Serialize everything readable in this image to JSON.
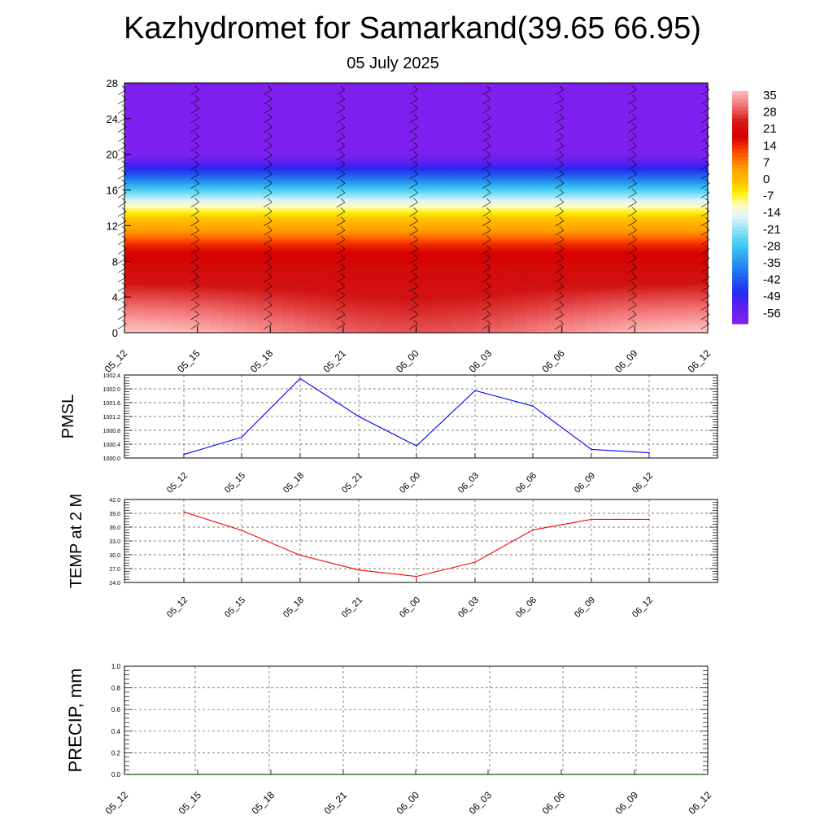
{
  "title": "Kazhydromet for Samarkand(39.65 66.95)",
  "subtitle": "05 July 2025",
  "chart_data": [
    {
      "type": "heatmap",
      "name": "temperature-wind-cross-section",
      "x_ticks": [
        "05_12",
        "05_15",
        "05_18",
        "05_21",
        "06_00",
        "06_03",
        "06_06",
        "06_09",
        "06_12"
      ],
      "y_ticks": [
        "0",
        "4",
        "8",
        "12",
        "16",
        "20",
        "24",
        "28"
      ],
      "ylim": [
        0,
        28
      ],
      "colorbar_labels": [
        "35",
        "28",
        "21",
        "14",
        "7",
        "0",
        "-7",
        "-14",
        "-21",
        "-28",
        "-35",
        "-42",
        "-49",
        "-56"
      ],
      "colorbar_range": [
        -63,
        42
      ],
      "temperature_profile": {
        "levels": [
          0,
          1,
          2,
          3,
          4,
          5,
          6,
          7,
          8,
          9,
          10,
          11,
          12,
          13,
          14,
          15,
          16,
          17,
          18,
          19,
          20,
          21,
          22,
          24,
          26,
          28
        ],
        "values": [
          38,
          36,
          34,
          32,
          30,
          28,
          26,
          25,
          23,
          21,
          17,
          10,
          5,
          0,
          -8,
          -16,
          -26,
          -36,
          -45,
          -54,
          -62,
          -63,
          -63,
          -63,
          -63,
          -63
        ]
      },
      "colors": {
        "warm": "#ffb0b0",
        "red": "#d80000",
        "orange": "#ffa500",
        "yellow": "#fff000",
        "cyan": "#3fc8f0",
        "blue": "#2020f0",
        "violet": "#8020f0"
      }
    },
    {
      "type": "line",
      "name": "pmsl",
      "ylabel": "PMSL",
      "categories": [
        "05_12",
        "05_15",
        "05_18",
        "05_21",
        "06_00",
        "06_03",
        "06_06",
        "06_09",
        "06_12"
      ],
      "values": [
        1000.1,
        1000.6,
        1002.3,
        1001.2,
        1000.35,
        1001.95,
        1001.5,
        1000.25,
        1000.15
      ],
      "ylim": [
        1000.0,
        1002.4
      ],
      "y_ticks": [
        "1000.0",
        "1000.4",
        "1000.8",
        "1001.2",
        "1001.6",
        "1002.0",
        "1002.4"
      ],
      "color": "#0000ff"
    },
    {
      "type": "line",
      "name": "temp-2m",
      "ylabel": "TEMP at 2 M",
      "categories": [
        "05_12",
        "05_15",
        "05_18",
        "05_21",
        "06_00",
        "06_03",
        "06_06",
        "06_09",
        "06_12"
      ],
      "values": [
        39.3,
        35.3,
        29.9,
        26.7,
        25.3,
        28.4,
        35.4,
        37.7,
        37.7
      ],
      "ylim": [
        24.0,
        42.0
      ],
      "y_ticks": [
        "24.0",
        "27.0",
        "30.0",
        "33.0",
        "36.0",
        "39.0",
        "42.0"
      ],
      "color": "#ff0000"
    },
    {
      "type": "line",
      "name": "precip",
      "ylabel": "PRECIP, mm",
      "categories": [
        "05_12",
        "05_15",
        "05_18",
        "05_21",
        "06_00",
        "06_03",
        "06_06",
        "06_09",
        "06_12"
      ],
      "values": [
        0,
        0,
        0,
        0,
        0,
        0,
        0,
        0,
        0
      ],
      "ylim": [
        0.0,
        1.0
      ],
      "y_ticks": [
        "0.0",
        "0.2",
        "0.4",
        "0.6",
        "0.8",
        "1.0"
      ],
      "color": "#006400"
    }
  ]
}
